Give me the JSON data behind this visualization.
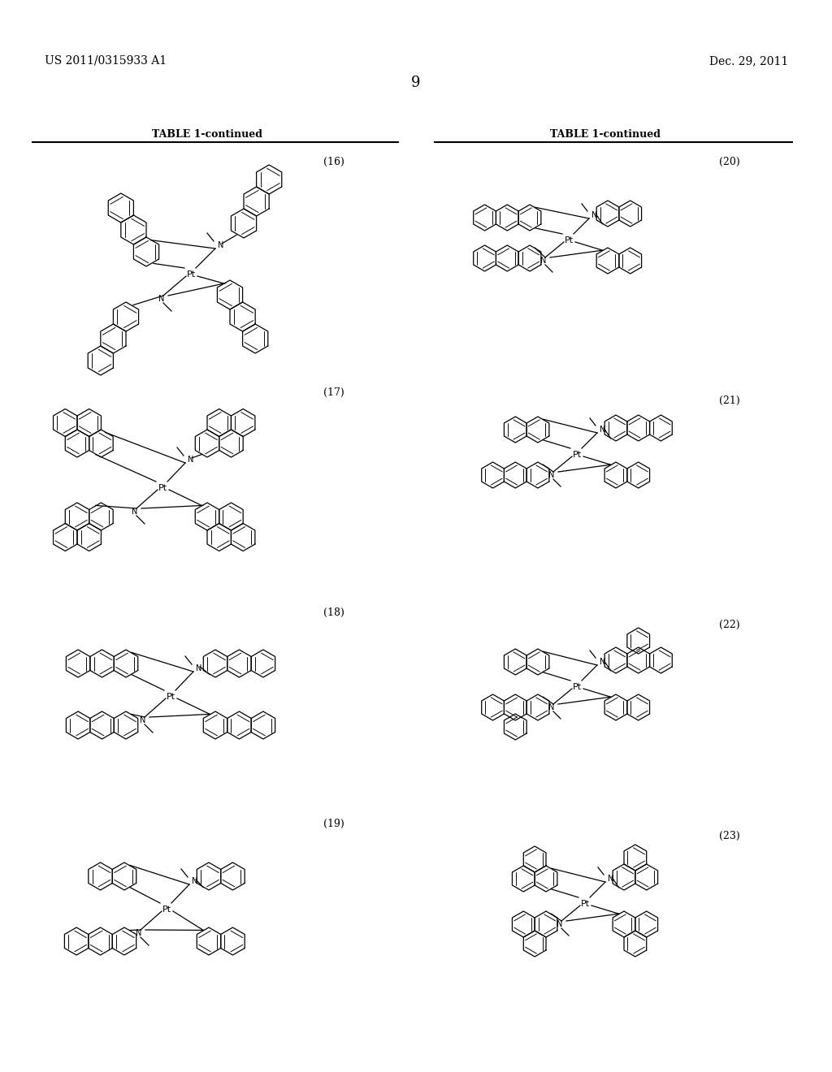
{
  "page_width": 10.24,
  "page_height": 13.2,
  "background": "#ffffff",
  "header_left": "US 2011/0315933 A1",
  "header_right": "Dec. 29, 2011",
  "page_number": "9",
  "table_header": "TABLE 1-continued",
  "compound_numbers": [
    "(16)",
    "(17)",
    "(18)",
    "(19)",
    "(20)",
    "(21)",
    "(22)",
    "(23)"
  ]
}
